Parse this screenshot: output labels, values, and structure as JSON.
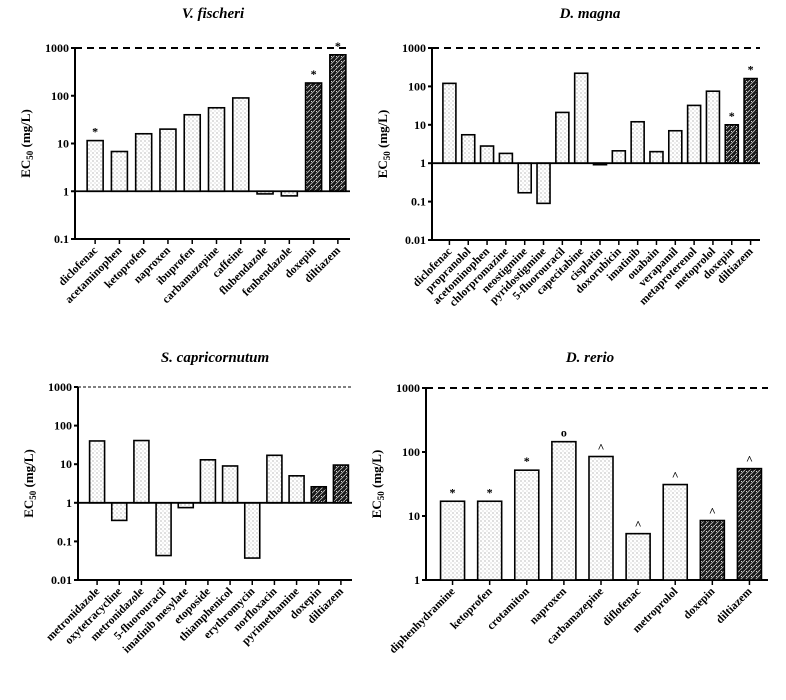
{
  "chart_data": [
    {
      "type": "bar",
      "title": "V. fischeri",
      "ylabel": "EC50 (mg/L)",
      "yscale": "log",
      "ylim": [
        0.1,
        1000
      ],
      "yticks": [
        "1000",
        "100",
        "10",
        "1",
        "0.1"
      ],
      "baseline": 1,
      "reference_line": 1000,
      "categories": [
        "diclofenac",
        "acetaminophen",
        "ketoprofen",
        "naproxen",
        "ibuprofen",
        "carbamazepine",
        "caffeine",
        "flubendazole",
        "fenbendazole",
        "doxepin",
        "diltiazem"
      ],
      "values": [
        11.5,
        6.8,
        16,
        20,
        40,
        56,
        90,
        0.88,
        0.8,
        185,
        720
      ],
      "pattern": [
        "dots",
        "dots",
        "dots",
        "dots",
        "dots",
        "dots",
        "dots",
        "dots",
        "dots",
        "hatch",
        "hatch"
      ],
      "annotations": [
        "*",
        "",
        "",
        "",
        "",
        "",
        "",
        "",
        "",
        "*",
        "*"
      ]
    },
    {
      "type": "bar",
      "title": "D. magna",
      "ylabel": "EC50 (mg/L)",
      "yscale": "log",
      "ylim": [
        0.01,
        1000
      ],
      "yticks": [
        "1000",
        "100",
        "10",
        "1",
        "0.1",
        "0.01"
      ],
      "baseline": 1,
      "reference_line": 1000,
      "categories": [
        "diclofenac",
        "propranolol",
        "acetominophen",
        "chlorpromazine",
        "neostigmine",
        "pyridostigmine",
        "5-fluorouracil",
        "capecitabine",
        "cisplatin",
        "doxorubicin",
        "imatinib",
        "ouabain",
        "verapamil",
        "metaproterenol",
        "metoprolol",
        "doxepin",
        "diltiazem"
      ],
      "values": [
        120,
        5.5,
        2.8,
        1.8,
        0.17,
        0.09,
        21,
        220,
        0.95,
        2.1,
        12,
        2.0,
        7,
        32,
        75,
        10,
        160
      ],
      "pattern": [
        "dots",
        "dots",
        "dots",
        "dots",
        "dots",
        "dots",
        "dots",
        "dots",
        "dots",
        "dots",
        "dots",
        "dots",
        "dots",
        "dots",
        "dots",
        "hatch",
        "hatch"
      ],
      "annotations": [
        "",
        "",
        "",
        "",
        "",
        "",
        "",
        "",
        "",
        "",
        "",
        "",
        "",
        "",
        "",
        "*",
        "*"
      ]
    },
    {
      "type": "bar",
      "title": "S. capricornutum",
      "ylabel": "EC50 (mg/L)",
      "yscale": "log",
      "ylim": [
        0.01,
        1000
      ],
      "yticks": [
        "1000",
        "100",
        "10",
        "1",
        "0.1",
        "0.01"
      ],
      "baseline": 1,
      "reference_line": 1000,
      "categories": [
        "metronidazole",
        "oxytetracycline",
        "metronidazole",
        "5-fluorouracil",
        "imatinib mesylate",
        "etoposide",
        "thiamphenicol",
        "erythromycin",
        "norfloxacin",
        "pyrimethamine",
        "doxepin",
        "diltiazem"
      ],
      "values": [
        40,
        0.35,
        41,
        0.043,
        0.75,
        13,
        9,
        0.037,
        17,
        5,
        2.6,
        9.5
      ],
      "pattern": [
        "dots",
        "dots",
        "dots",
        "dots",
        "dots",
        "dots",
        "dots",
        "dots",
        "dots",
        "dots",
        "hatch",
        "hatch"
      ],
      "annotations": [
        "",
        "",
        "",
        "",
        "",
        "",
        "",
        "",
        "",
        "",
        "",
        ""
      ]
    },
    {
      "type": "bar",
      "title": "D. rerio",
      "ylabel": "EC50 (mg/L)",
      "yscale": "log",
      "ylim": [
        1,
        1000
      ],
      "yticks": [
        "1000",
        "100",
        "10",
        "1"
      ],
      "baseline": 1,
      "reference_line": 1000,
      "categories": [
        "diphenhydramine",
        "ketoprofen",
        "crotamiton",
        "naproxen",
        "carbamazepine",
        "diflofenac",
        "metroprolol",
        "doxepin",
        "diltiazem"
      ],
      "values": [
        17,
        17,
        52,
        145,
        85,
        5.3,
        31,
        8.5,
        55
      ],
      "pattern": [
        "dots",
        "dots",
        "dots",
        "dots",
        "dots",
        "dots",
        "dots",
        "hatch",
        "hatch"
      ],
      "annotations": [
        "*",
        "*",
        "*",
        "o",
        "^",
        "^",
        "^",
        "^",
        "^"
      ]
    }
  ],
  "colors": {
    "axis": "#000000",
    "bar_fill_light": "#ffffff",
    "bar_fill_dark": "#222222"
  }
}
